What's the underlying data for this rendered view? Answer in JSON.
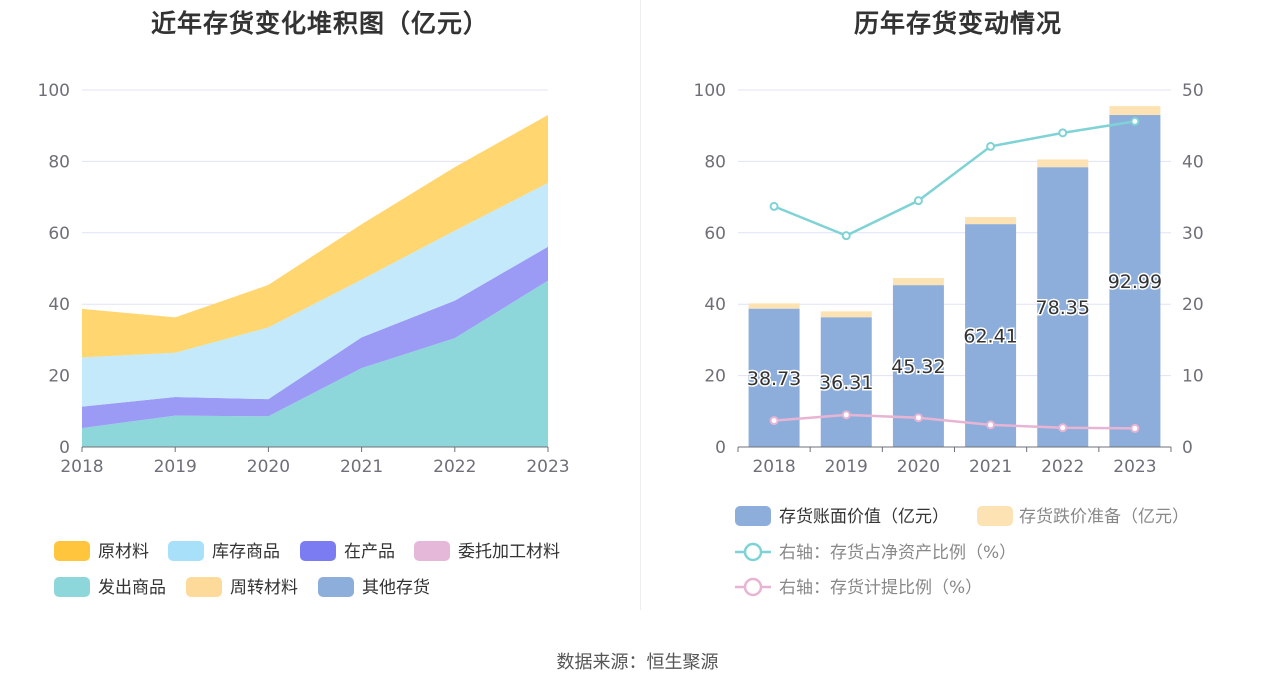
{
  "source_text": "数据来源：恒生聚源",
  "colors": {
    "yuancailiao": "#FFC53D",
    "kucun": "#A7E0F8",
    "zaichanpin": "#7B7BF2",
    "weituo": "#E5B8D9",
    "fachu": "#8DD7DA",
    "zhouzhuan": "#FDD99A",
    "qita": "#8DAEDB",
    "bar_main": "#8DAEDB",
    "bar_top": "#FDE3B4",
    "line1": "#7FD3D6",
    "line2": "#E8B4D4",
    "grid": "#E0E3F7"
  },
  "chart_data": [
    {
      "type": "area",
      "title": "近年存货变化堆积图（亿元）",
      "categories": [
        "2018",
        "2019",
        "2020",
        "2021",
        "2022",
        "2023"
      ],
      "ylim": [
        0,
        100
      ],
      "yticks": [
        0,
        20,
        40,
        60,
        80,
        100
      ],
      "grid": true,
      "legend_position": "bottom",
      "series": [
        {
          "name": "发出商品",
          "color": "#8DD7DA",
          "values": [
            5.3,
            8.8,
            8.6,
            22.1,
            30.5,
            46.6
          ]
        },
        {
          "name": "在产品",
          "color": "#9B9BF5",
          "values": [
            6.0,
            5.2,
            4.8,
            8.6,
            10.5,
            9.5
          ]
        },
        {
          "name": "库存商品",
          "color": "#C3E9FA",
          "values": [
            13.8,
            12.4,
            20.1,
            16.2,
            19.6,
            17.9
          ]
        },
        {
          "name": "原材料",
          "color": "#FFD66F",
          "values": [
            13.6,
            9.9,
            11.9,
            15.5,
            17.8,
            19.0
          ]
        },
        {
          "name": "委托加工材料",
          "color": "#E5B8D9",
          "values": [
            0,
            0,
            0,
            0,
            0,
            0
          ]
        },
        {
          "name": "周转材料",
          "color": "#FDD99A",
          "values": [
            0,
            0,
            0,
            0,
            0,
            0
          ]
        },
        {
          "name": "其他存货",
          "color": "#8DAEDB",
          "values": [
            0,
            0,
            0,
            0,
            0,
            0
          ]
        }
      ],
      "legend": [
        {
          "name": "原材料",
          "color": "#FFC53D"
        },
        {
          "name": "库存商品",
          "color": "#A7E0F8"
        },
        {
          "name": "在产品",
          "color": "#7B7BF2"
        },
        {
          "name": "委托加工材料",
          "color": "#E5B8D9"
        },
        {
          "name": "发出商品",
          "color": "#8DD7DA"
        },
        {
          "name": "周转材料",
          "color": "#FDD99A"
        },
        {
          "name": "其他存货",
          "color": "#8DAEDB"
        }
      ]
    },
    {
      "type": "bar",
      "title": "历年存货变动情况",
      "categories": [
        "2018",
        "2019",
        "2020",
        "2021",
        "2022",
        "2023"
      ],
      "ylim": [
        0,
        100
      ],
      "yticks": [
        0,
        20,
        40,
        60,
        80,
        100
      ],
      "y2lim": [
        0,
        50
      ],
      "y2ticks": [
        0,
        10,
        20,
        30,
        40,
        50
      ],
      "grid": true,
      "legend_position": "bottom",
      "bars": [
        {
          "name": "存货账面价值（亿元）",
          "color": "#8DAEDB",
          "values": [
            38.73,
            36.31,
            45.32,
            62.41,
            78.35,
            92.99
          ],
          "labels": [
            "38.73",
            "36.31",
            "45.32",
            "62.41",
            "78.35",
            "92.99"
          ]
        },
        {
          "name": "存货跌价准备（亿元）",
          "color": "#FDE3B4",
          "values": [
            1.5,
            1.7,
            2.0,
            2.0,
            2.2,
            2.5
          ]
        }
      ],
      "lines": [
        {
          "name": "右轴：存货占净资产比例（%）",
          "color": "#7FD3D6",
          "values": [
            33.7,
            29.6,
            34.5,
            42.1,
            44.0,
            45.6
          ]
        },
        {
          "name": "右轴：存货计提比例（%）",
          "color": "#E8B4D4",
          "values": [
            3.7,
            4.5,
            4.1,
            3.1,
            2.7,
            2.6
          ]
        }
      ]
    }
  ]
}
